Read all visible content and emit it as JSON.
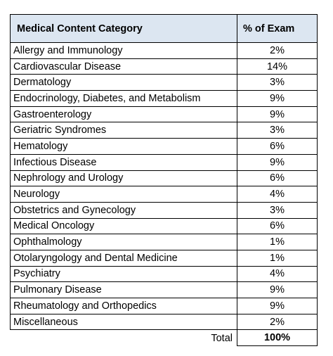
{
  "table": {
    "header": {
      "category": "Medical Content Category",
      "percent": "% of Exam"
    },
    "rows": [
      {
        "category": "Allergy and Immunology",
        "percent": "2%"
      },
      {
        "category": "Cardiovascular Disease",
        "percent": "14%"
      },
      {
        "category": "Dermatology",
        "percent": "3%"
      },
      {
        "category": "Endocrinology, Diabetes, and Metabolism",
        "percent": "9%"
      },
      {
        "category": "Gastroenterology",
        "percent": "9%"
      },
      {
        "category": "Geriatric Syndromes",
        "percent": "3%"
      },
      {
        "category": "Hematology",
        "percent": "6%"
      },
      {
        "category": "Infectious Disease",
        "percent": "9%"
      },
      {
        "category": "Nephrology and Urology",
        "percent": "6%"
      },
      {
        "category": "Neurology",
        "percent": "4%"
      },
      {
        "category": "Obstetrics and Gynecology",
        "percent": "3%"
      },
      {
        "category": "Medical Oncology",
        "percent": "6%"
      },
      {
        "category": "Ophthalmology",
        "percent": "1%"
      },
      {
        "category": "Otolaryngology and Dental Medicine",
        "percent": "1%"
      },
      {
        "category": "Psychiatry",
        "percent": "4%"
      },
      {
        "category": "Pulmonary Disease",
        "percent": "9%"
      },
      {
        "category": "Rheumatology and Orthopedics",
        "percent": "9%"
      },
      {
        "category": "Miscellaneous",
        "percent": "2%"
      }
    ],
    "total": {
      "label": "Total",
      "value": "100%"
    }
  },
  "colors": {
    "header_background": "#dce6f1",
    "border": "#000000"
  }
}
